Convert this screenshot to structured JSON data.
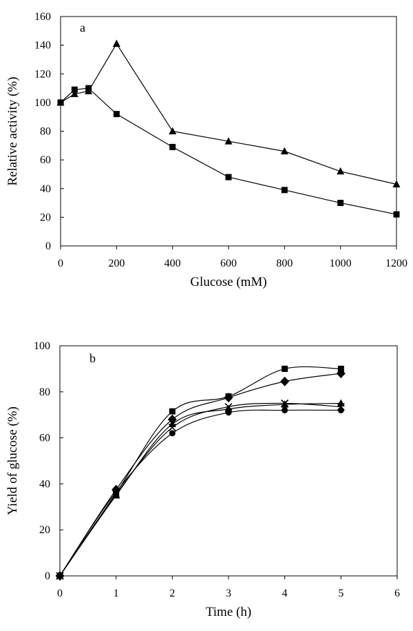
{
  "chart_data": [
    {
      "type": "line",
      "panel_label": "a",
      "title": "",
      "xlabel": "Glucose (mM)",
      "ylabel": "Relative activity (%)",
      "xlim": [
        0,
        1200
      ],
      "ylim": [
        0,
        160
      ],
      "x_ticks": [
        0,
        200,
        400,
        600,
        800,
        1000,
        1200
      ],
      "y_ticks": [
        0,
        20,
        40,
        60,
        80,
        100,
        120,
        140,
        160
      ],
      "grid": false,
      "legend": "none",
      "line_style": "straight",
      "series": [
        {
          "marker": "triangle",
          "x": [
            0,
            50,
            100,
            200,
            400,
            600,
            800,
            1000,
            1200
          ],
          "y": [
            100,
            106,
            108,
            141,
            80,
            73,
            66,
            52,
            43
          ]
        },
        {
          "marker": "square",
          "x": [
            0,
            50,
            100,
            200,
            400,
            600,
            800,
            1000,
            1200
          ],
          "y": [
            100,
            109,
            110,
            92,
            69,
            48,
            39,
            30,
            22
          ]
        }
      ]
    },
    {
      "type": "line",
      "panel_label": "b",
      "title": "",
      "xlabel": "Time (h)",
      "ylabel": "Yield of glucose (%)",
      "xlim": [
        0,
        6
      ],
      "ylim": [
        0,
        100
      ],
      "x_ticks": [
        0,
        1,
        2,
        3,
        4,
        5,
        6
      ],
      "y_ticks": [
        0,
        20,
        40,
        60,
        80,
        100
      ],
      "grid": false,
      "legend": "none",
      "line_style": "smooth",
      "series": [
        {
          "marker": "square",
          "x": [
            0,
            1,
            2,
            3,
            4,
            5
          ],
          "y": [
            0,
            36,
            71.5,
            78,
            90,
            90
          ]
        },
        {
          "marker": "diamond",
          "x": [
            0,
            1,
            2,
            3,
            4,
            5
          ],
          "y": [
            0,
            37.5,
            68,
            77.5,
            84.5,
            88
          ]
        },
        {
          "marker": "triangle",
          "x": [
            0,
            1,
            2,
            3,
            4,
            5
          ],
          "y": [
            0,
            35,
            66,
            72.5,
            74.5,
            75
          ]
        },
        {
          "marker": "cross",
          "x": [
            0,
            1,
            2,
            3,
            4,
            5
          ],
          "y": [
            0,
            35.5,
            64.5,
            73.5,
            75,
            73.5
          ]
        },
        {
          "marker": "circle",
          "x": [
            0,
            1,
            2,
            3,
            4,
            5
          ],
          "y": [
            0,
            36.5,
            62,
            71,
            72,
            72
          ]
        }
      ]
    }
  ]
}
